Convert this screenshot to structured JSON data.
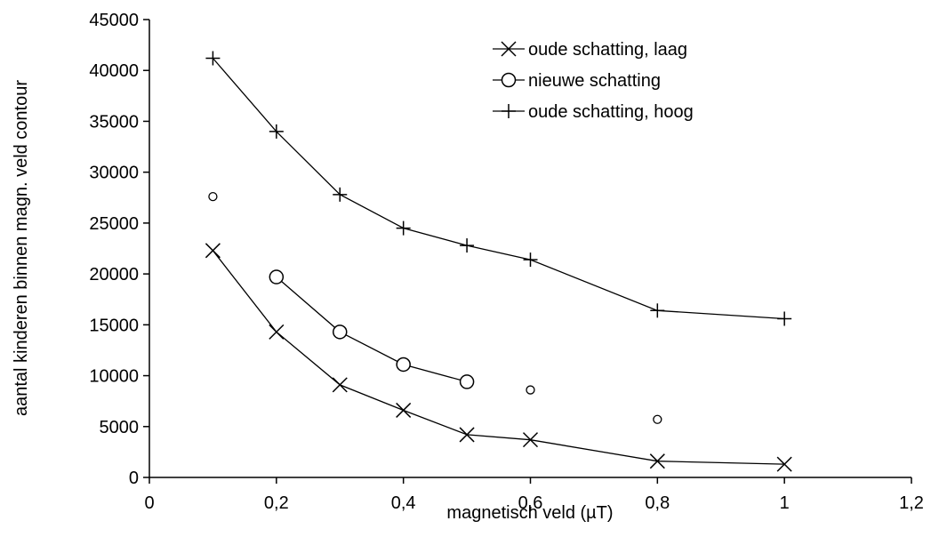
{
  "chart_data": {
    "type": "line",
    "xlabel": "magnetisch veld (µT)",
    "ylabel": "aantal kinderen binnen magn. veld contour",
    "xlim": [
      0,
      1.2
    ],
    "ylim": [
      0,
      45000
    ],
    "x_ticks": [
      0,
      0.2,
      0.4,
      0.6,
      0.8,
      1,
      1.2
    ],
    "x_tick_labels": [
      "0",
      "0,2",
      "0,4",
      "0,6",
      "0,8",
      "1",
      "1,2"
    ],
    "y_ticks": [
      0,
      5000,
      10000,
      15000,
      20000,
      25000,
      30000,
      35000,
      40000,
      45000
    ],
    "y_tick_labels": [
      "0",
      "5000",
      "10000",
      "15000",
      "20000",
      "25000",
      "30000",
      "35000",
      "40000",
      "45000"
    ],
    "grid": false,
    "legend_position": "top-right",
    "series": [
      {
        "name": "oude schatting, laag",
        "marker": "x",
        "x": [
          0.1,
          0.2,
          0.3,
          0.4,
          0.5,
          0.6,
          0.8,
          1.0
        ],
        "y": [
          22300,
          14300,
          9100,
          6600,
          4200,
          3700,
          1600,
          1300
        ]
      },
      {
        "name": "nieuwe schatting",
        "marker": "circle",
        "x": [
          0.2,
          0.3,
          0.4,
          0.5
        ],
        "y": [
          19700,
          14300,
          11100,
          9400
        ]
      },
      {
        "name": "oude schatting, hoog",
        "marker": "plus",
        "x": [
          0.1,
          0.2,
          0.3,
          0.4,
          0.5,
          0.6,
          0.8,
          1.0
        ],
        "y": [
          41200,
          34000,
          27800,
          24500,
          22800,
          21400,
          16400,
          15600
        ]
      }
    ],
    "extra_points": {
      "marker": "small-circle",
      "x": [
        0.1,
        0.6,
        0.8
      ],
      "y": [
        27600,
        8600,
        5700
      ]
    },
    "colors": {
      "line": "#000000",
      "background": "#ffffff"
    }
  }
}
